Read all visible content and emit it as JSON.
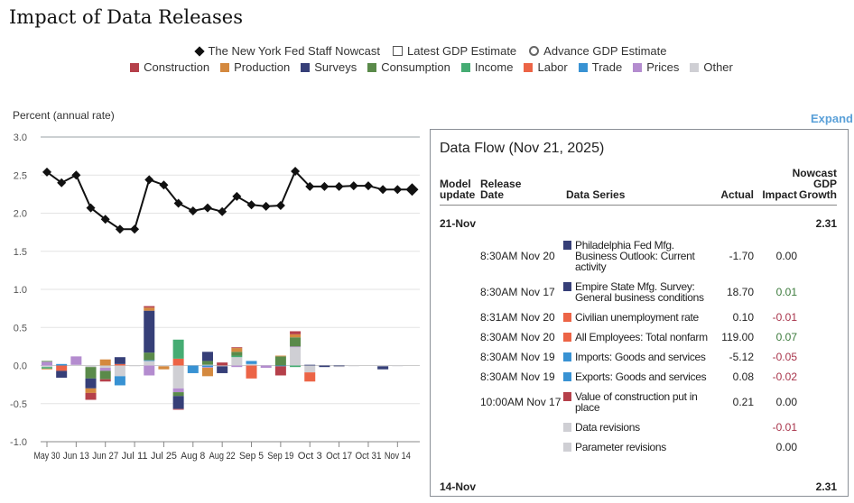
{
  "title": "Impact of Data Releases",
  "legend_series": [
    {
      "label": "The New York Fed Staff Nowcast",
      "icon": "diamond-icon"
    },
    {
      "label": "Latest GDP Estimate",
      "icon": "square-outline-icon"
    },
    {
      "label": "Advance GDP Estimate",
      "icon": "circle-outline-icon"
    }
  ],
  "categories_legend": [
    {
      "label": "Construction",
      "color": "#b5404a"
    },
    {
      "label": "Production",
      "color": "#d4893f"
    },
    {
      "label": "Surveys",
      "color": "#363f78"
    },
    {
      "label": "Consumption",
      "color": "#5a8a4a"
    },
    {
      "label": "Income",
      "color": "#45ac73"
    },
    {
      "label": "Labor",
      "color": "#ec6446"
    },
    {
      "label": "Trade",
      "color": "#3892d3"
    },
    {
      "label": "Prices",
      "color": "#b48ccf"
    },
    {
      "label": "Other",
      "color": "#cfcfd4"
    }
  ],
  "expand_label": "Expand",
  "chart_data": {
    "type": "bar",
    "stacked": true,
    "ylabel": "Percent (annual rate)",
    "ylim": [
      -1.0,
      3.0
    ],
    "yticks": [
      "3.0",
      "2.5",
      "2.0",
      "1.5",
      "1.0",
      "0.5",
      "0.0",
      "-0.5",
      "-1.0"
    ],
    "ytick_values": [
      3.0,
      2.5,
      2.0,
      1.5,
      1.0,
      0.5,
      0.0,
      -0.5,
      -1.0
    ],
    "xtick_labels": [
      "May 30",
      "Jun 13",
      "Jun 27",
      "Jul 11",
      "Jul 25",
      "Aug 8",
      "Aug 22",
      "Sep 5",
      "Sep 19",
      "Oct 3",
      "Oct 17",
      "Oct 31",
      "Nov 14"
    ],
    "weeks": [
      "May 30",
      "Jun 6",
      "Jun 13",
      "Jun 20",
      "Jun 27",
      "Jul 4",
      "Jul 11",
      "Jul 18",
      "Jul 25",
      "Aug 1",
      "Aug 8",
      "Aug 15",
      "Aug 22",
      "Aug 29",
      "Sep 5",
      "Sep 12",
      "Sep 19",
      "Sep 26",
      "Oct 3",
      "Oct 10",
      "Oct 17",
      "Oct 24",
      "Oct 31",
      "Nov 7",
      "Nov 14",
      "Nov 21"
    ],
    "nowcast": [
      2.54,
      2.4,
      2.5,
      2.07,
      1.92,
      1.79,
      1.79,
      2.44,
      2.37,
      2.13,
      2.03,
      2.07,
      2.02,
      2.22,
      2.11,
      2.09,
      2.1,
      2.55,
      2.35,
      2.35,
      2.35,
      2.36,
      2.36,
      2.31,
      2.31,
      2.31
    ],
    "contributions": [
      {
        "Prices": 0.05,
        "Consumption": 0.01,
        "Other": -0.02,
        "Income": -0.02,
        "Production": -0.01
      },
      {
        "Trade": 0.02,
        "Labor": -0.07,
        "Surveys": -0.09
      },
      {
        "Other": 0.01,
        "Prices": 0.11
      },
      {
        "Other": -0.02,
        "Consumption": -0.15,
        "Surveys": -0.13,
        "Production": -0.06,
        "Construction": -0.09
      },
      {
        "Production": 0.08,
        "Other": -0.03,
        "Prices": -0.04,
        "Consumption": -0.11,
        "Construction": -0.03
      },
      {
        "Labor": 0.02,
        "Surveys": 0.09,
        "Other": -0.14,
        "Trade": -0.12
      },
      {
        "Other": -0.005
      },
      {
        "Other": 0.06,
        "Trade": 0.01,
        "Consumption": 0.1,
        "Surveys": 0.55,
        "Production": 0.04,
        "Construction": 0.02,
        "Prices": -0.13
      },
      {
        "Other": -0.01,
        "Production": -0.04
      },
      {
        "Labor": 0.09,
        "Income": 0.25,
        "Other": -0.3,
        "Prices": -0.05,
        "Consumption": -0.05,
        "Surveys": -0.17,
        "Construction": -0.01
      },
      {
        "Trade": -0.1
      },
      {
        "Other": 0.01,
        "Consumption": 0.05,
        "Surveys": 0.12,
        "Trade": -0.02,
        "Prices": -0.01,
        "Production": -0.11
      },
      {
        "Construction": 0.04,
        "Other": -0.01,
        "Surveys": -0.09
      },
      {
        "Other": 0.11,
        "Income": 0.02,
        "Consumption": 0.05,
        "Production": 0.05,
        "Construction": 0.01,
        "Prices": -0.02
      },
      {
        "Other": 0.02,
        "Trade": 0.04,
        "Labor": -0.17
      },
      {
        "Prices": -0.03
      },
      {
        "Consumption": 0.12,
        "Production": 0.01,
        "Trade": -0.01,
        "Construction": -0.12
      },
      {
        "Other": 0.24,
        "Prices": 0.01,
        "Consumption": 0.12,
        "Production": 0.04,
        "Construction": 0.04,
        "Income": -0.02
      },
      {
        "Surveys": 0.01,
        "Other": -0.09,
        "Labor": -0.12
      },
      {
        "Surveys": -0.02
      },
      {
        "Surveys": -0.01,
        "Other": -0.01
      },
      {
        "Other": -0.005
      },
      {},
      {
        "Other": -0.01,
        "Surveys": -0.04
      },
      {
        "Other": -0.005
      },
      {}
    ]
  },
  "data_flow": {
    "title": "Data Flow (Nov 21, 2025)",
    "headers": {
      "model_update": "Model update",
      "release_date": "Release Date",
      "data_series": "Data Series",
      "actual": "Actual",
      "impact": "Impact",
      "nowcast": "Nowcast GDP Growth"
    },
    "groups": [
      {
        "date": "21-Nov",
        "nowcast": "2.31"
      },
      {
        "date": "14-Nov",
        "nowcast": "2.31"
      }
    ],
    "rows": [
      {
        "release": "8:30AM Nov 20",
        "series": "Philadelphia Fed Mfg. Business Outlook: Current activity",
        "category_color": "#363f78",
        "actual": "-1.70",
        "impact": "0.00",
        "impact_color": "#222222"
      },
      {
        "release": "8:30AM Nov 17",
        "series": "Empire State Mfg. Survey: General business conditions",
        "category_color": "#363f78",
        "actual": "18.70",
        "impact": "0.01",
        "impact_color": "#3b7a3b"
      },
      {
        "release": "8:31AM Nov 20",
        "series": "Civilian unemployment rate",
        "category_color": "#ec6446",
        "actual": "0.10",
        "impact": "-0.01",
        "impact_color": "#a8334a"
      },
      {
        "release": "8:30AM Nov 20",
        "series": "All Employees: Total nonfarm",
        "category_color": "#ec6446",
        "actual": "119.00",
        "impact": "0.07",
        "impact_color": "#3b7a3b"
      },
      {
        "release": "8:30AM Nov 19",
        "series": "Imports: Goods and services",
        "category_color": "#3892d3",
        "actual": "-5.12",
        "impact": "-0.05",
        "impact_color": "#a8334a"
      },
      {
        "release": "8:30AM Nov 19",
        "series": "Exports: Goods and services",
        "category_color": "#3892d3",
        "actual": "0.08",
        "impact": "-0.02",
        "impact_color": "#a8334a"
      },
      {
        "release": "10:00AM Nov 17",
        "series": "Value of construction put in place",
        "category_color": "#b5404a",
        "actual": "0.21",
        "impact": "0.00",
        "impact_color": "#222222"
      },
      {
        "release": "",
        "series": "Data revisions",
        "category_color": "#cfcfd4",
        "actual": "",
        "impact": "-0.01",
        "impact_color": "#a8334a"
      },
      {
        "release": "",
        "series": "Parameter revisions",
        "category_color": "#cfcfd4",
        "actual": "",
        "impact": "0.00",
        "impact_color": "#222222"
      }
    ]
  }
}
